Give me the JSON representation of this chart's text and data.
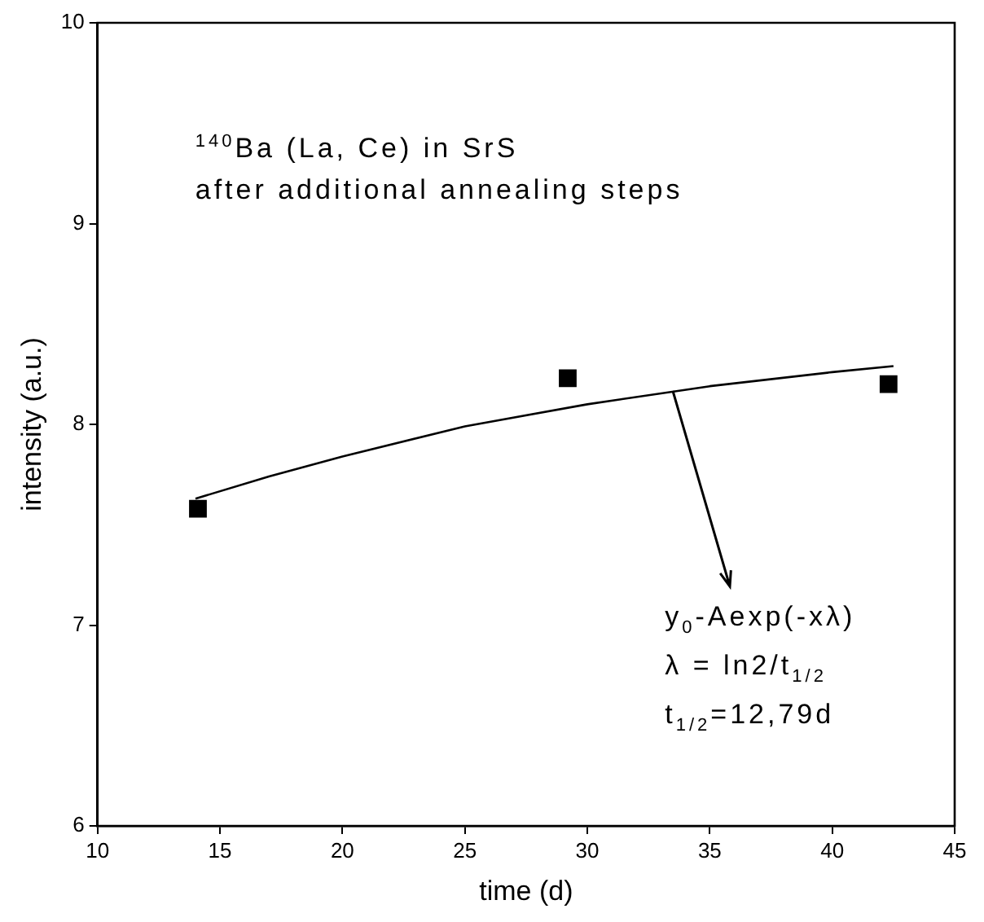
{
  "chart_data": {
    "type": "scatter",
    "xlabel": "time (d)",
    "ylabel": "intensity (a.u.)",
    "xlim": [
      10,
      45
    ],
    "xticks": [
      10,
      15,
      20,
      25,
      30,
      35,
      40,
      45
    ],
    "ylim": [
      6,
      10
    ],
    "yticks": [
      6,
      7,
      8,
      9,
      10
    ],
    "grid": false,
    "legend": false,
    "series": [
      {
        "type": "scatter",
        "color": "#000000",
        "marker": "square",
        "x": [
          14.1,
          29.2,
          42.3
        ],
        "values": [
          7.58,
          8.23,
          8.2
        ]
      },
      {
        "type": "line",
        "color": "#000000",
        "marker": "none",
        "line_style": "solid",
        "x": [
          14,
          17,
          20,
          25,
          30,
          35,
          40,
          42.5
        ],
        "values": [
          7.63,
          7.74,
          7.84,
          7.99,
          8.1,
          8.19,
          8.26,
          8.29
        ]
      }
    ],
    "annotations": [
      "$^{140}$Ba (La, Ce) in SrS",
      "after additional annealing steps",
      {
        "text": "y$_{0}$-Aexp(-xλ)",
        "x": 33.5,
        "y": 8.17
      },
      "λ = ln2/t$_{1/2}$",
      "t$_{1/2}$=12,79d"
    ]
  }
}
